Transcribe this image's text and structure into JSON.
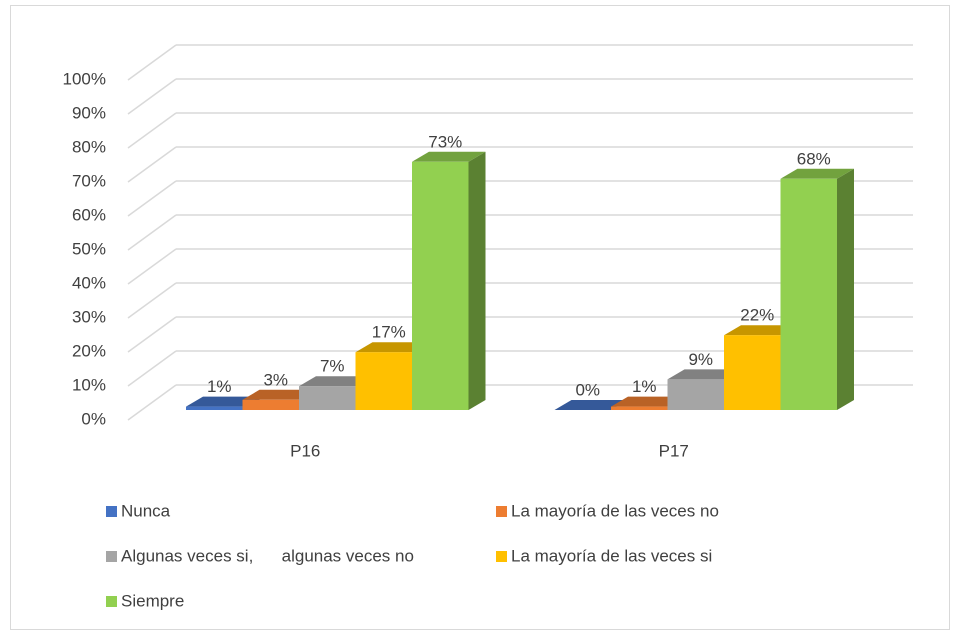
{
  "chart_data": {
    "type": "bar3d",
    "categories": [
      "P16",
      "P17"
    ],
    "series": [
      {
        "name": "Nunca",
        "color": "#4472c4",
        "values": [
          1,
          0
        ],
        "value_labels": [
          "1%",
          "0%"
        ]
      },
      {
        "name": "La mayoría de las veces no",
        "color": "#ed7d31",
        "values": [
          3,
          1
        ],
        "value_labels": [
          "3%",
          "1%"
        ]
      },
      {
        "name": "Algunas veces si,      algunas veces no",
        "color": "#a5a5a5",
        "values": [
          7,
          9
        ],
        "value_labels": [
          "7%",
          "9%"
        ]
      },
      {
        "name": "La mayoría de las veces si",
        "color": "#ffc000",
        "values": [
          17,
          22
        ],
        "value_labels": [
          "17%",
          "22%"
        ]
      },
      {
        "name": "Siempre",
        "color": "#92d050",
        "values": [
          73,
          68
        ],
        "value_labels": [
          "73%",
          "68%"
        ]
      }
    ],
    "ylim": [
      0,
      100
    ],
    "yticks": [
      {
        "value": 0,
        "label": "0%"
      },
      {
        "value": 10,
        "label": "10%"
      },
      {
        "value": 20,
        "label": "20%"
      },
      {
        "value": 30,
        "label": "30%"
      },
      {
        "value": 40,
        "label": "40%"
      },
      {
        "value": 50,
        "label": "50%"
      },
      {
        "value": 60,
        "label": "60%"
      },
      {
        "value": 70,
        "label": "70%"
      },
      {
        "value": 80,
        "label": "80%"
      },
      {
        "value": 90,
        "label": "90%"
      },
      {
        "value": 100,
        "label": "100%"
      }
    ],
    "grid": true,
    "legend": "bottom"
  }
}
